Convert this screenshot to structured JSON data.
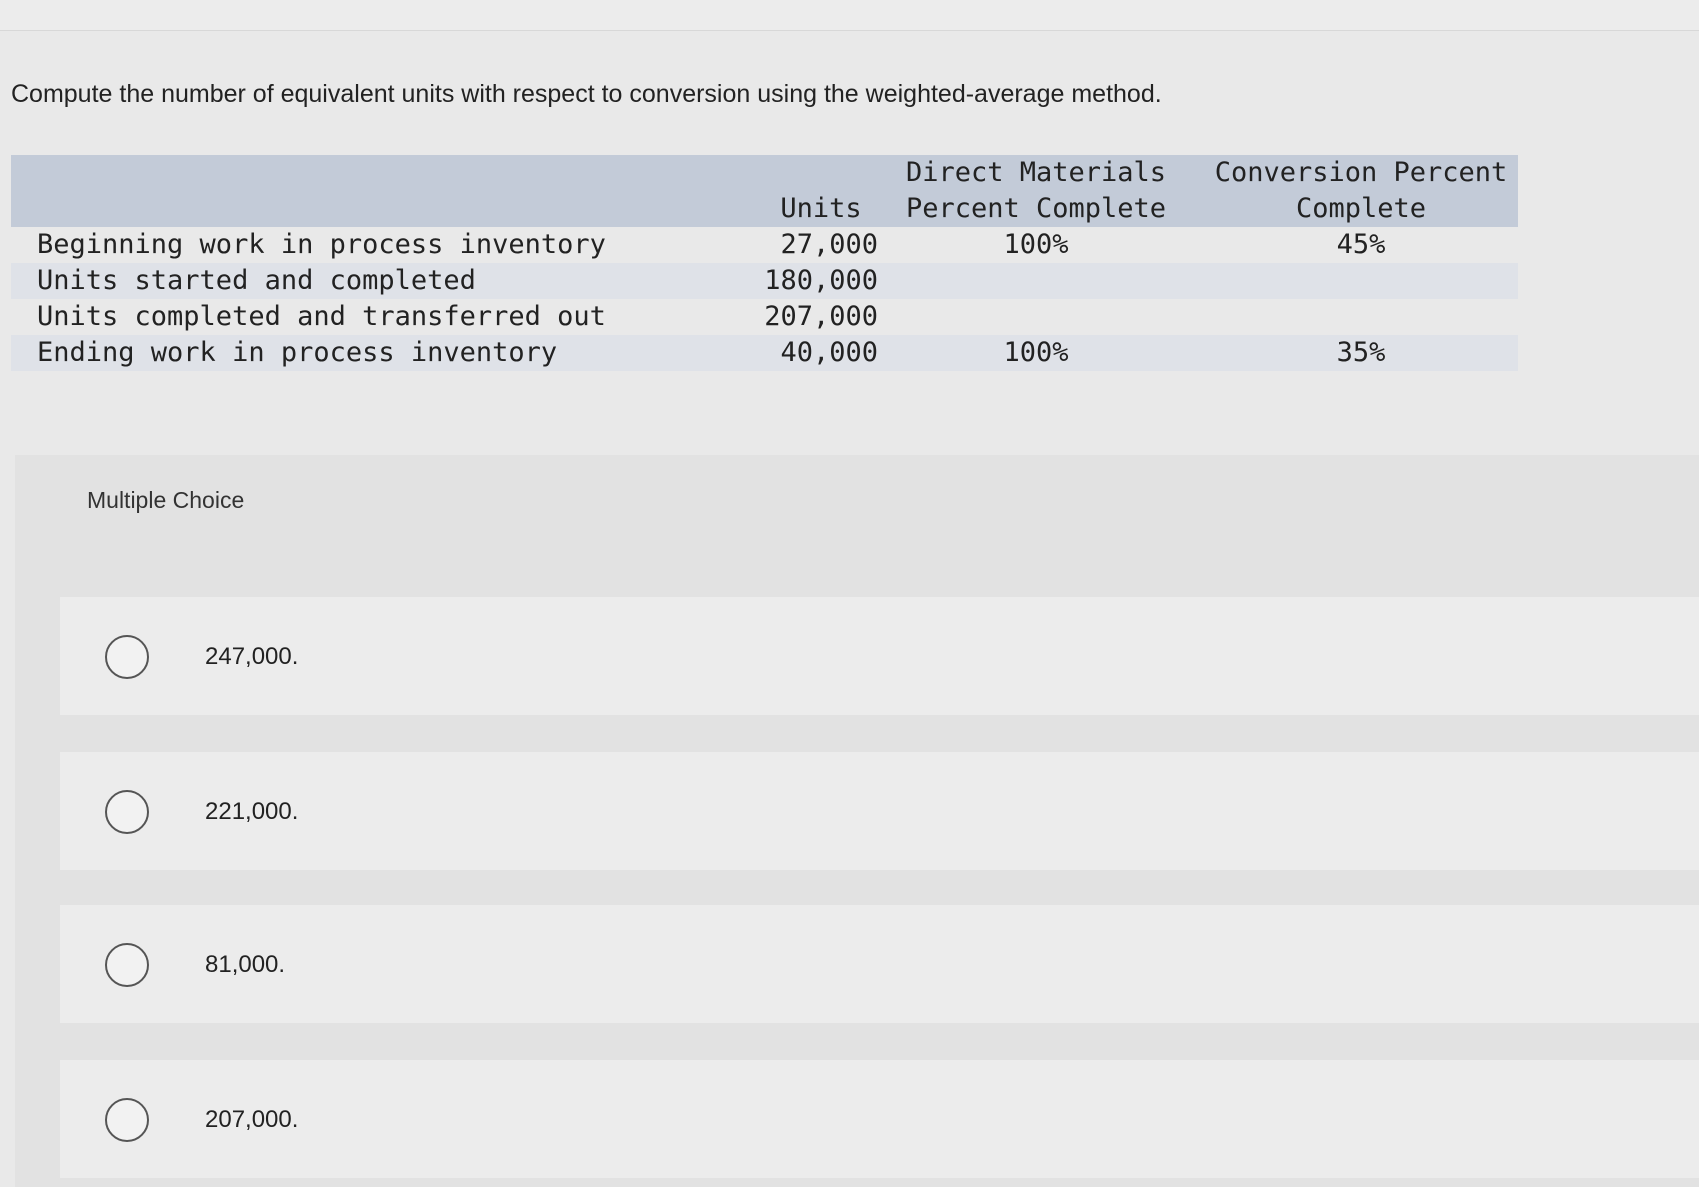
{
  "question": "Compute the number of equivalent units with respect to conversion using the weighted-average method.",
  "table": {
    "headers": {
      "units": "Units",
      "dm_line1": "Direct Materials",
      "dm_line2": "Percent Complete",
      "cv_line1": "Conversion Percent",
      "cv_line2": "Complete"
    },
    "rows": [
      {
        "label": "Beginning work in process inventory",
        "units": "27,000",
        "dm": "100%",
        "cv": "45%"
      },
      {
        "label": "Units started and completed",
        "units": "180,000",
        "dm": "",
        "cv": ""
      },
      {
        "label": "Units completed and transferred out",
        "units": "207,000",
        "dm": "",
        "cv": ""
      },
      {
        "label": "Ending work in process inventory",
        "units": "40,000",
        "dm": "100%",
        "cv": "35%"
      }
    ]
  },
  "multiple_choice": {
    "heading": "Multiple Choice",
    "options": [
      "247,000.",
      "221,000.",
      "81,000.",
      "207,000."
    ]
  }
}
